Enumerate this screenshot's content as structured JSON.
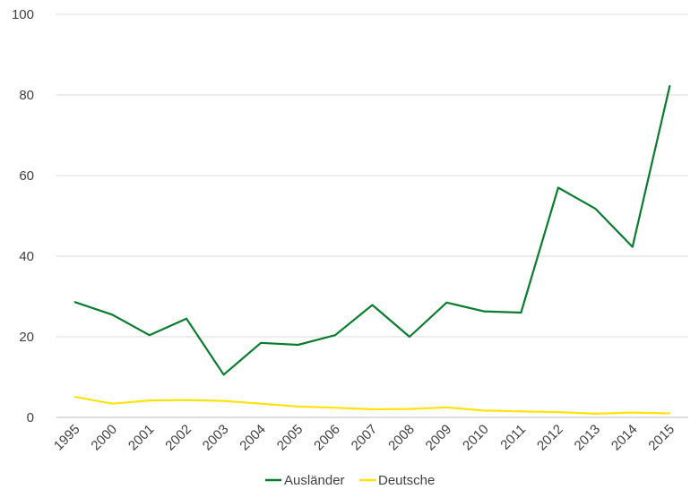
{
  "chart_data": {
    "type": "line",
    "categories": [
      "1995",
      "2000",
      "2001",
      "2002",
      "2003",
      "2004",
      "2005",
      "2006",
      "2007",
      "2008",
      "2009",
      "2010",
      "2011",
      "2012",
      "2013",
      "2014",
      "2015"
    ],
    "series": [
      {
        "name": "Ausländer",
        "color": "#0a7c2f",
        "values": [
          28.6,
          25.5,
          20.4,
          24.5,
          10.6,
          18.5,
          18.0,
          20.4,
          27.9,
          20.0,
          28.5,
          26.3,
          26.0,
          57.0,
          51.8,
          42.3,
          82.2
        ]
      },
      {
        "name": "Deutsche",
        "color": "#ffe20a",
        "values": [
          5.1,
          3.4,
          4.2,
          4.3,
          4.1,
          3.4,
          2.7,
          2.4,
          2.0,
          2.1,
          2.5,
          1.7,
          1.5,
          1.3,
          0.9,
          1.2,
          1.0
        ]
      }
    ],
    "ylim": [
      0,
      100
    ],
    "yticks": [
      "0",
      "20",
      "40",
      "60",
      "80",
      "100"
    ],
    "grid": true,
    "legend": "bottom"
  }
}
